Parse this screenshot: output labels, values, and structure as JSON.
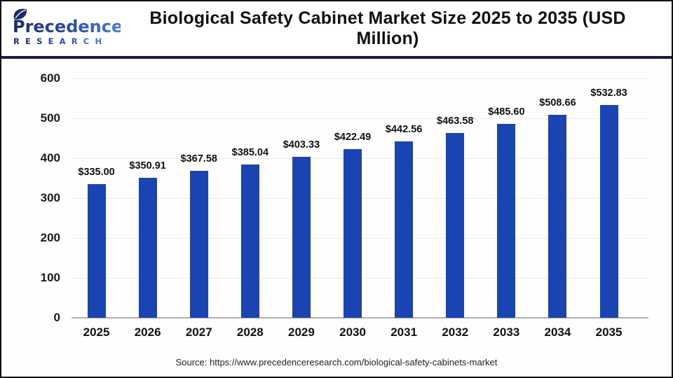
{
  "header": {
    "logo": {
      "brand": "Precedence",
      "subtitle": "RESEARCH"
    },
    "title": "Biological Safety Cabinet Market Size 2025 to 2035 (USD Million)"
  },
  "chart_data": {
    "type": "bar",
    "title": "Biological Safety Cabinet Market Size 2025 to 2035 (USD Million)",
    "categories": [
      "2025",
      "2026",
      "2027",
      "2028",
      "2029",
      "2030",
      "2031",
      "2032",
      "2033",
      "2034",
      "2035"
    ],
    "values": [
      335.0,
      350.91,
      367.58,
      385.04,
      403.33,
      422.49,
      442.56,
      463.58,
      485.6,
      508.66,
      532.83
    ],
    "value_labels": [
      "$335.00",
      "$350.91",
      "$367.58",
      "$385.04",
      "$403.33",
      "$422.49",
      "$442.56",
      "$463.58",
      "$485.60",
      "$508.66",
      "$532.83"
    ],
    "xlabel": "",
    "ylabel": "",
    "ylim": [
      0,
      600
    ],
    "yticks": [
      0,
      100,
      200,
      300,
      400,
      500,
      600
    ],
    "grid": true,
    "legend": "none",
    "bar_color": "#1b44b3"
  },
  "footer": {
    "source": "Source: https://www.precedenceresearch.com/biological-safety-cabinets-market"
  },
  "colors": {
    "bar": "#1b44b3",
    "divider": "#191d42",
    "logo_dark": "#1d2a6a",
    "logo_mid": "#2c4da6",
    "logo_light": "#4a7ed6"
  }
}
